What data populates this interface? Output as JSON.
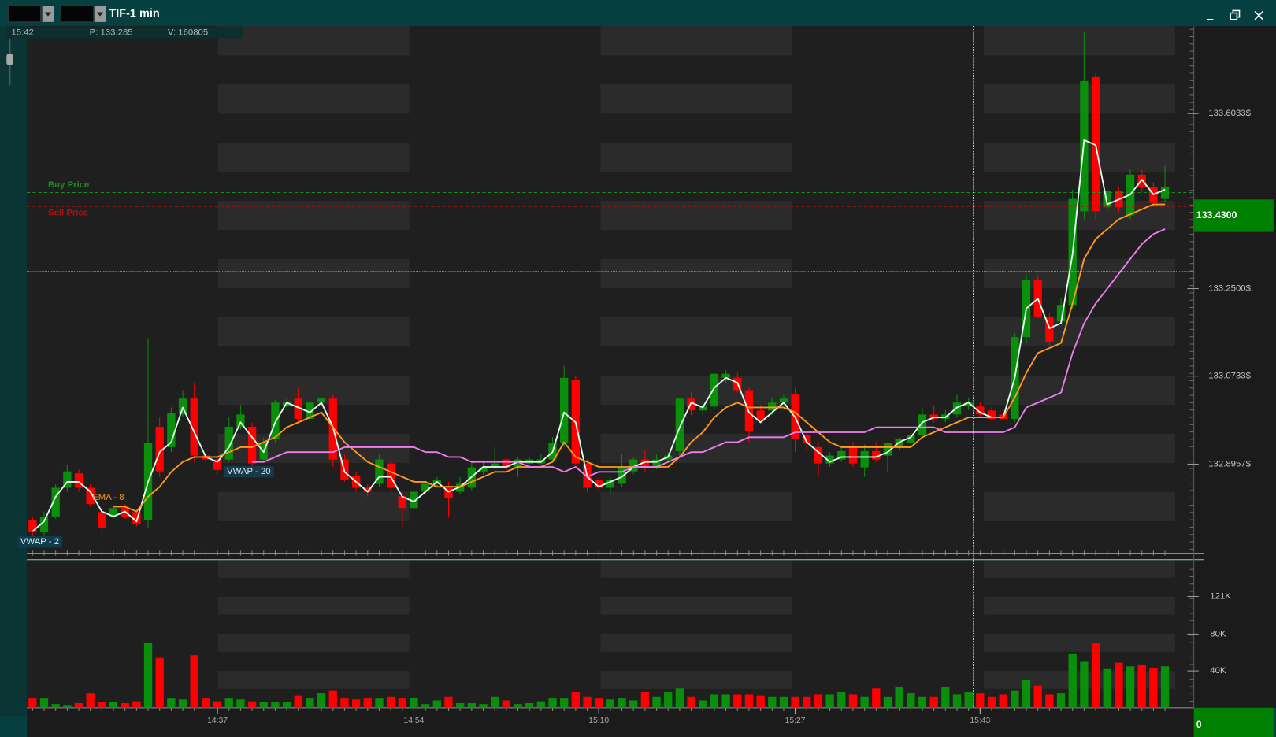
{
  "window": {
    "title": "TIF-1 min"
  },
  "info": {
    "time": "15:42",
    "price": "P: 133.285",
    "volume": "V: 160805"
  },
  "chart_data": {
    "type": "candlestick",
    "categories": [
      null,
      null,
      null,
      null,
      null,
      null,
      null,
      null,
      null,
      null,
      null,
      null,
      null,
      null,
      null,
      null,
      "14:37",
      null,
      null,
      null,
      null,
      null,
      null,
      null,
      null,
      null,
      null,
      null,
      null,
      null,
      null,
      null,
      null,
      "14:54",
      null,
      null,
      null,
      null,
      null,
      null,
      null,
      null,
      null,
      null,
      null,
      null,
      null,
      null,
      null,
      "15:10",
      null,
      null,
      null,
      null,
      null,
      null,
      null,
      null,
      null,
      null,
      null,
      null,
      null,
      null,
      null,
      null,
      "15:27",
      null,
      null,
      null,
      null,
      null,
      null,
      null,
      null,
      null,
      null,
      null,
      null,
      null,
      null,
      null,
      "15:43",
      null,
      null,
      null,
      null,
      null,
      null,
      null,
      null,
      null,
      null,
      null,
      null,
      null,
      null,
      null,
      null
    ],
    "open": [
      132.782,
      132.758,
      132.79,
      132.848,
      132.877,
      132.848,
      132.799,
      132.79,
      132.807,
      132.799,
      132.782,
      132.971,
      132.93,
      132.996,
      133.028,
      132.913,
      132.905,
      132.905,
      132.971,
      132.971,
      132.905,
      132.946,
      133.012,
      133.028,
      132.987,
      133.02,
      133.028,
      132.905,
      132.872,
      132.848,
      132.856,
      132.897,
      132.831,
      132.807,
      132.84,
      132.856,
      132.851,
      132.84,
      132.848,
      132.881,
      132.889,
      132.905,
      132.889,
      132.897,
      132.897,
      132.905,
      132.938,
      133.065,
      132.897,
      132.864,
      132.848,
      132.856,
      132.881,
      132.905,
      132.889,
      132.905,
      132.922,
      133.028,
      133.004,
      133.012,
      133.07,
      133.07,
      133.045,
      133.004,
      133.004,
      133.02,
      133.037,
      132.955,
      132.93,
      132.897,
      132.905,
      132.93,
      132.889,
      132.922,
      132.913,
      132.93,
      132.938,
      132.955,
      132.996,
      132.987,
      132.996,
      133.012,
      133.012,
      133.004,
      132.996,
      132.987,
      133.152,
      133.267,
      133.193,
      133.184,
      133.217,
      133.406,
      133.677,
      133.414,
      133.447,
      133.398,
      133.48,
      133.455,
      133.431
    ],
    "high": [
      132.79,
      132.8,
      132.855,
      132.895,
      132.885,
      132.855,
      132.805,
      132.81,
      132.815,
      132.805,
      133.15,
      132.99,
      133.01,
      133.045,
      133.06,
      132.92,
      132.91,
      132.99,
      133.015,
      132.98,
      132.95,
      133.025,
      133.03,
      133.05,
      133.025,
      133.03,
      133.035,
      132.915,
      132.88,
      132.855,
      132.915,
      132.905,
      132.84,
      132.845,
      132.86,
      132.87,
      132.86,
      132.87,
      132.9,
      132.9,
      132.93,
      132.91,
      132.91,
      132.91,
      132.915,
      132.95,
      133.094,
      133.075,
      132.905,
      132.87,
      132.87,
      132.915,
      132.91,
      132.925,
      132.915,
      132.92,
      133.03,
      133.04,
      133.02,
      133.08,
      133.085,
      133.08,
      133.05,
      133.015,
      133.03,
      133.035,
      133.05,
      132.96,
      132.94,
      132.92,
      132.93,
      132.94,
      132.935,
      132.94,
      132.94,
      132.95,
      132.96,
      133.01,
      133.015,
      133.005,
      133.035,
      133.03,
      133.02,
      133.01,
      133.005,
      133.16,
      133.28,
      133.275,
      133.2,
      133.23,
      133.45,
      133.767,
      133.685,
      133.45,
      133.455,
      133.49,
      133.49,
      133.465,
      133.5
    ],
    "low": [
      132.75,
      132.75,
      132.785,
      132.84,
      132.84,
      132.81,
      132.755,
      132.785,
      132.785,
      132.77,
      132.766,
      132.87,
      132.92,
      132.99,
      132.9,
      132.895,
      132.875,
      132.9,
      132.965,
      132.89,
      132.9,
      132.94,
      133.005,
      132.98,
      132.98,
      133.015,
      132.89,
      132.86,
      132.84,
      132.83,
      132.85,
      132.84,
      132.765,
      132.8,
      132.835,
      132.85,
      132.79,
      132.835,
      132.843,
      132.875,
      132.885,
      132.88,
      132.87,
      132.89,
      132.89,
      132.9,
      132.93,
      132.89,
      132.84,
      132.84,
      132.835,
      132.85,
      132.875,
      132.88,
      132.885,
      132.9,
      132.91,
      132.995,
      132.995,
      133.005,
      133.06,
      133.04,
      132.94,
      132.98,
      132.995,
      133.015,
      132.92,
      132.92,
      132.87,
      132.89,
      132.9,
      132.89,
      132.87,
      132.9,
      132.88,
      132.925,
      132.93,
      132.95,
      132.98,
      132.98,
      132.99,
      133.005,
      132.99,
      132.985,
      132.985,
      132.98,
      133.14,
      133.19,
      133.135,
      133.18,
      133.21,
      133.39,
      133.39,
      133.405,
      133.405,
      133.39,
      133.445,
      133.415,
      133.425
    ],
    "close": [
      132.758,
      132.79,
      132.848,
      132.881,
      132.848,
      132.815,
      132.766,
      132.807,
      132.79,
      132.774,
      132.938,
      132.881,
      132.999,
      133.028,
      132.913,
      132.905,
      132.884,
      132.971,
      132.996,
      132.897,
      132.938,
      133.02,
      133.02,
      132.987,
      133.02,
      133.028,
      132.905,
      132.864,
      132.848,
      132.84,
      132.905,
      132.848,
      132.807,
      132.84,
      132.856,
      132.864,
      132.828,
      132.856,
      132.889,
      132.889,
      132.897,
      132.889,
      132.905,
      132.905,
      132.905,
      132.938,
      133.07,
      132.897,
      132.848,
      132.848,
      132.864,
      132.889,
      132.905,
      132.889,
      132.905,
      132.913,
      133.028,
      133.004,
      133.012,
      133.078,
      133.078,
      133.045,
      132.963,
      132.987,
      133.02,
      133.028,
      132.946,
      132.938,
      132.897,
      132.913,
      132.922,
      132.897,
      132.922,
      132.905,
      132.938,
      132.946,
      132.955,
      132.996,
      132.987,
      132.996,
      133.02,
      133.02,
      132.996,
      132.987,
      132.987,
      133.152,
      133.267,
      133.193,
      133.143,
      133.217,
      133.431,
      133.669,
      133.406,
      133.447,
      133.414,
      133.48,
      133.455,
      133.423,
      133.455
    ],
    "up_color": "#0a8f0a",
    "down_color": "#ff0000",
    "ylim": [
      132.716,
      133.78
    ],
    "yticks": [
      {
        "value": 132.8957,
        "label": "132.8957$"
      },
      {
        "value": 133.0733,
        "label": "133.0733$"
      },
      {
        "value": 133.25,
        "label": "133.2500$"
      },
      {
        "value": 133.6033,
        "label": "133.6033$"
      }
    ],
    "lines": [
      {
        "name": "VWAP - 2",
        "color": "#e4fff2",
        "values": [
          132.76,
          132.78,
          132.83,
          132.86,
          132.86,
          132.84,
          132.8,
          132.79,
          132.8,
          132.78,
          132.86,
          132.92,
          132.94,
          133.01,
          132.96,
          132.91,
          132.9,
          132.93,
          132.98,
          132.95,
          132.92,
          132.98,
          133.02,
          133.01,
          133.0,
          133.02,
          132.97,
          132.88,
          132.86,
          132.84,
          132.87,
          132.87,
          132.83,
          132.82,
          132.84,
          132.86,
          132.84,
          132.85,
          132.87,
          132.89,
          132.89,
          132.89,
          132.9,
          132.9,
          132.9,
          132.92,
          133.0,
          132.98,
          132.87,
          132.85,
          132.86,
          132.87,
          132.89,
          132.9,
          132.9,
          132.91,
          132.97,
          133.02,
          133.01,
          133.05,
          133.07,
          133.06,
          133.0,
          132.98,
          133.0,
          133.02,
          132.99,
          132.94,
          132.92,
          132.9,
          132.91,
          132.91,
          132.91,
          132.91,
          132.92,
          132.94,
          132.95,
          132.98,
          132.99,
          132.99,
          133.01,
          133.02,
          133.0,
          132.99,
          132.99,
          133.07,
          133.21,
          133.23,
          133.17,
          133.18,
          133.32,
          133.55,
          133.54,
          133.42,
          133.43,
          133.44,
          133.47,
          133.44,
          133.45
        ]
      },
      {
        "name": "EMA - 8",
        "color": "#ff9a1e",
        "values": [
          null,
          null,
          null,
          null,
          null,
          null,
          null,
          132.81,
          132.81,
          132.8,
          132.83,
          132.85,
          132.88,
          132.9,
          132.91,
          132.91,
          132.91,
          132.92,
          132.93,
          132.93,
          132.94,
          132.95,
          132.97,
          132.98,
          132.99,
          133.0,
          132.97,
          132.94,
          132.92,
          132.9,
          132.89,
          132.88,
          132.87,
          132.86,
          132.86,
          132.85,
          132.85,
          132.85,
          132.86,
          132.87,
          132.88,
          132.88,
          132.89,
          132.89,
          132.89,
          132.9,
          132.94,
          132.91,
          132.9,
          132.89,
          132.89,
          132.89,
          132.89,
          132.89,
          132.89,
          132.89,
          132.91,
          132.94,
          132.96,
          132.99,
          133.01,
          133.02,
          133.01,
          133.01,
          133.01,
          133.01,
          133.0,
          132.98,
          132.96,
          132.94,
          132.93,
          132.93,
          132.93,
          132.93,
          132.93,
          132.93,
          132.93,
          132.95,
          132.96,
          132.97,
          132.98,
          132.99,
          132.99,
          132.99,
          132.99,
          133.03,
          133.08,
          133.12,
          133.13,
          133.14,
          133.22,
          133.31,
          133.35,
          133.37,
          133.39,
          133.4,
          133.41,
          133.42,
          133.42
        ]
      },
      {
        "name": "VWAP - 20",
        "color": "#f07ef0",
        "values": [
          null,
          null,
          null,
          null,
          null,
          null,
          null,
          null,
          null,
          null,
          null,
          null,
          null,
          null,
          null,
          null,
          null,
          null,
          null,
          132.9,
          132.9,
          132.91,
          132.92,
          132.92,
          132.92,
          132.92,
          132.92,
          132.93,
          132.93,
          132.93,
          132.93,
          132.93,
          132.93,
          132.93,
          132.92,
          132.92,
          132.91,
          132.91,
          132.9,
          132.9,
          132.9,
          132.9,
          132.9,
          132.89,
          132.89,
          132.89,
          132.88,
          132.89,
          132.87,
          132.88,
          132.88,
          132.88,
          132.89,
          132.89,
          132.89,
          132.9,
          132.91,
          132.92,
          132.92,
          132.93,
          132.94,
          132.94,
          132.95,
          132.95,
          132.95,
          132.95,
          132.96,
          132.96,
          132.96,
          132.96,
          132.96,
          132.96,
          132.96,
          132.97,
          132.97,
          132.97,
          132.97,
          132.97,
          132.97,
          132.96,
          132.96,
          132.96,
          132.96,
          132.96,
          132.96,
          132.97,
          133.01,
          133.02,
          133.03,
          133.04,
          133.12,
          133.18,
          133.22,
          133.25,
          133.28,
          133.31,
          133.34,
          133.36,
          133.37
        ]
      }
    ],
    "levels": [
      {
        "name": "Buy Price",
        "color": "#1e8c1e",
        "value": 133.444
      },
      {
        "name": "Sell Price",
        "color": "#b01010",
        "value": 133.416
      }
    ],
    "last_price": {
      "value": 133.43,
      "label": "133.4300"
    },
    "volume": {
      "values": [
        10,
        10,
        4,
        3,
        5,
        16,
        6,
        6,
        5,
        7,
        71,
        54,
        10,
        9,
        57,
        10,
        7,
        10,
        9,
        7,
        6,
        6,
        6,
        13,
        10,
        16,
        19,
        10,
        9,
        10,
        10,
        12,
        10,
        11,
        4,
        8,
        12,
        5,
        5,
        4,
        12,
        8,
        4,
        5,
        7,
        10,
        10,
        17,
        12,
        10,
        9,
        10,
        8,
        17,
        12,
        17,
        21,
        12,
        8,
        14,
        14,
        14,
        14,
        13,
        12,
        12,
        12,
        12,
        14,
        14,
        17,
        14,
        12,
        21,
        12,
        23,
        16,
        12,
        12,
        23,
        14,
        17,
        16,
        12,
        14,
        19,
        30,
        24,
        14,
        16,
        59,
        50,
        70,
        42,
        49,
        45,
        47,
        43,
        45
      ],
      "ylim": [
        0,
        161
      ],
      "yticks": [
        {
          "value": 40,
          "label": "40K"
        },
        {
          "value": 80,
          "label": "80K"
        },
        {
          "value": 121,
          "label": "121K"
        }
      ],
      "last": 0
    }
  }
}
